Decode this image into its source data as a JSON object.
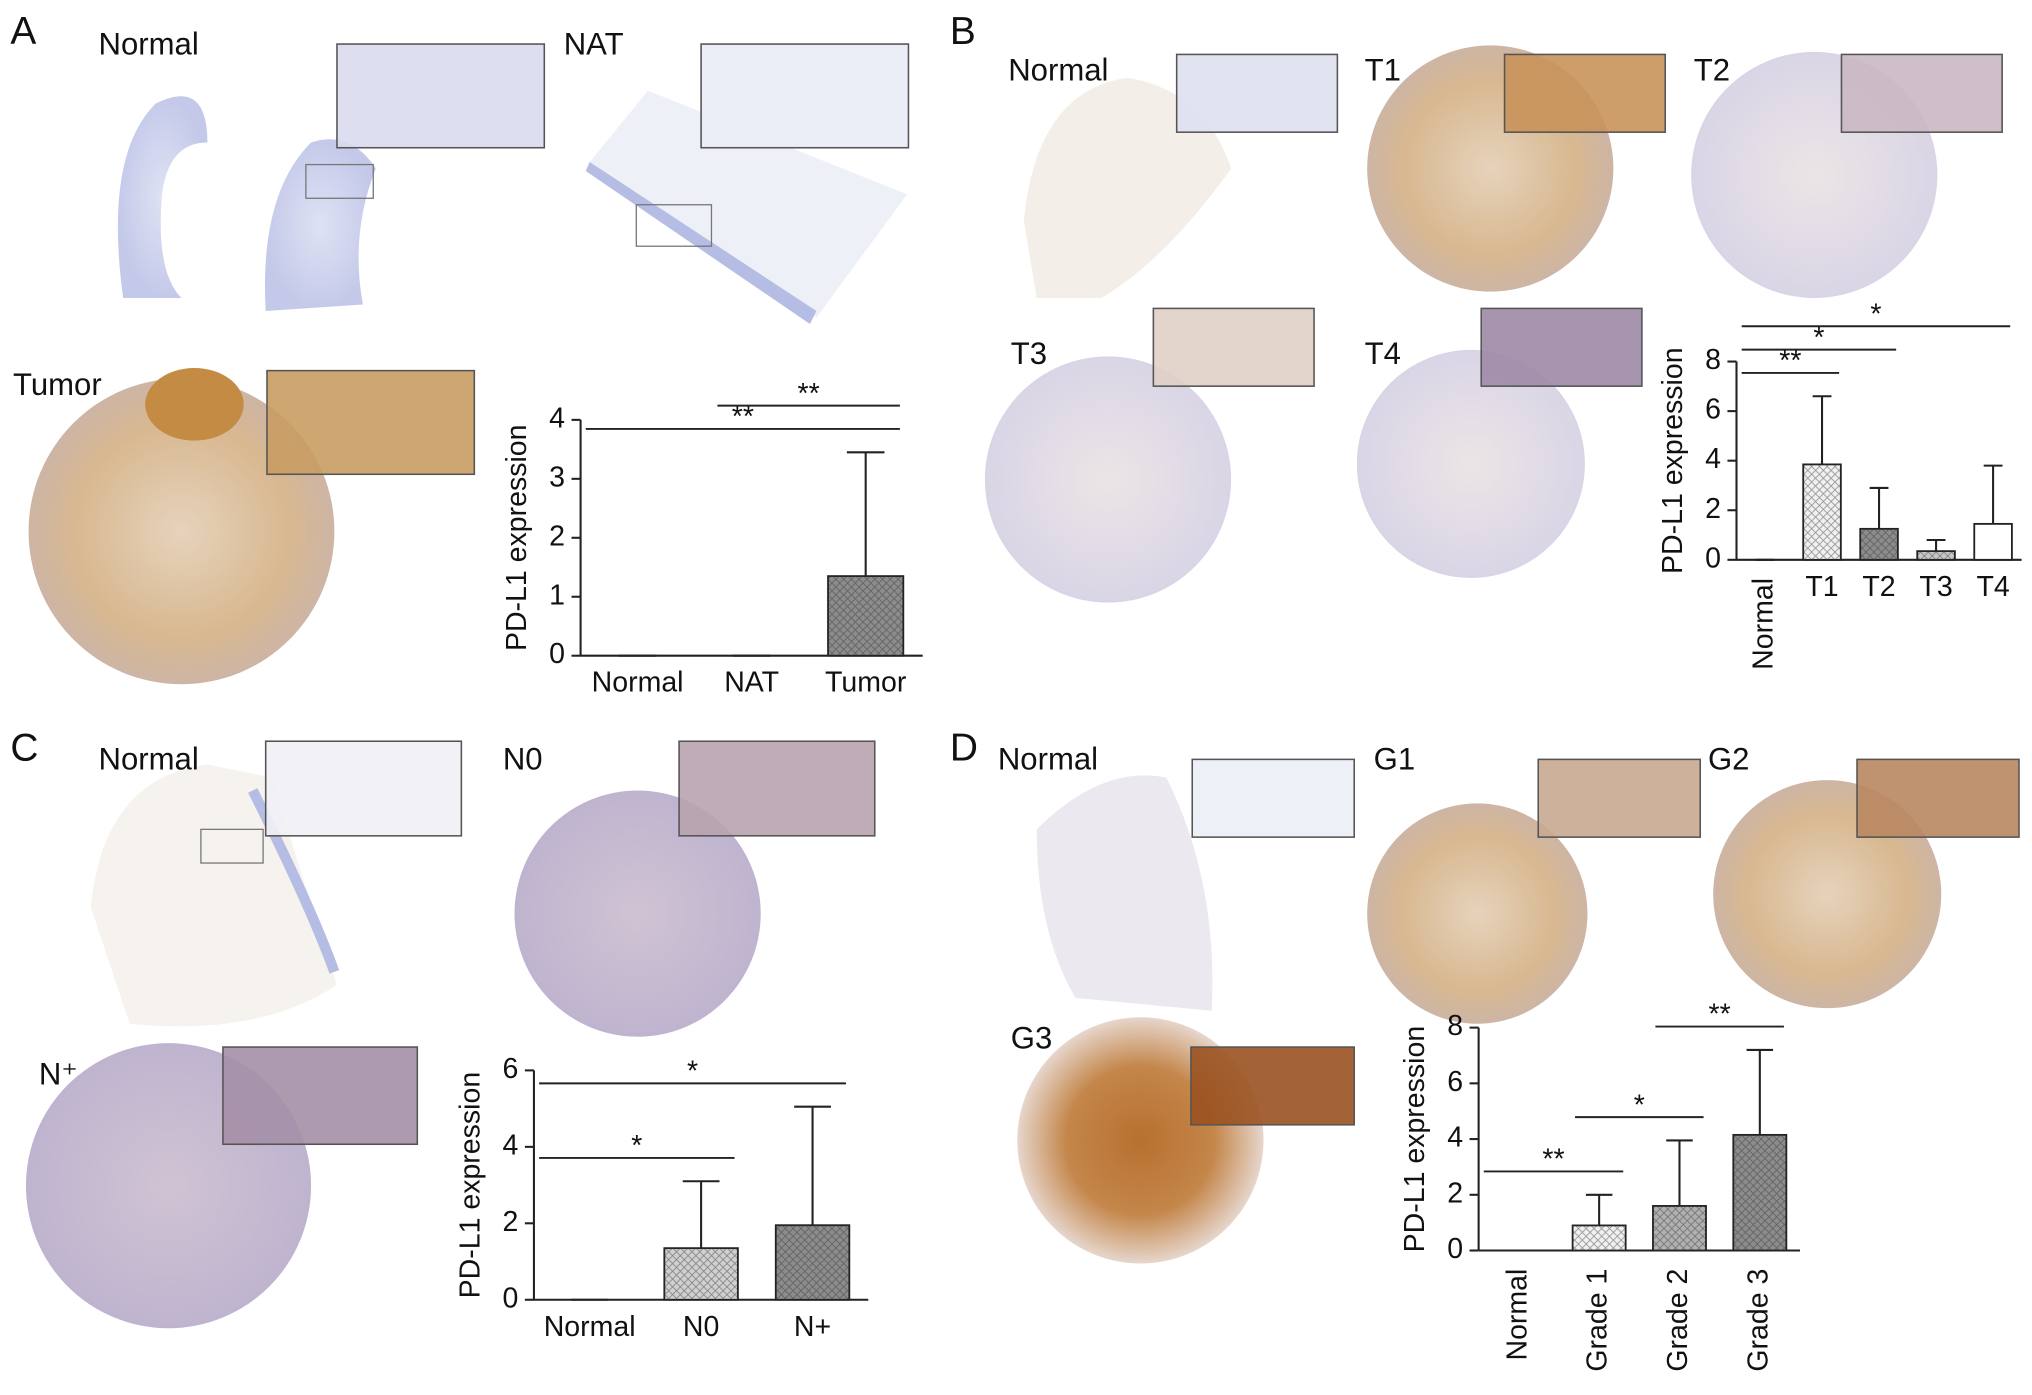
{
  "panels": [
    {
      "letter": "A",
      "image_labels": [
        "Normal",
        "NAT",
        "Tumor"
      ]
    },
    {
      "letter": "B",
      "image_labels": [
        "Normal",
        "T1",
        "T2",
        "T3",
        "T4"
      ]
    },
    {
      "letter": "C",
      "image_labels": [
        "Normal",
        "N0",
        "N⁺"
      ]
    },
    {
      "letter": "D",
      "image_labels": [
        "Normal",
        "G1",
        "G2",
        "G3"
      ]
    }
  ],
  "chart_data": [
    {
      "type": "bar",
      "y_label": "PD-L1 expression",
      "categories": [
        "Normal",
        "NAT",
        "Tumor"
      ],
      "values": [
        0,
        0,
        1.35
      ],
      "errors": [
        0,
        0,
        2.1
      ],
      "colors": [
        "#ffffff",
        "#ffffff",
        "#8c8c8c"
      ],
      "ylim": [
        0,
        4
      ],
      "yticks": [
        0,
        1,
        2,
        3,
        4
      ],
      "significance": [
        {
          "between": [
            "Normal",
            "Tumor"
          ],
          "label": "**"
        },
        {
          "between": [
            "NAT",
            "Tumor"
          ],
          "label": "**"
        }
      ]
    },
    {
      "type": "bar",
      "y_label": "PD-L1 expression",
      "categories": [
        "Normal",
        "T1",
        "T2",
        "T3",
        "T4"
      ],
      "values": [
        0,
        3.85,
        1.25,
        0.35,
        1.45
      ],
      "errors": [
        0,
        2.75,
        1.65,
        0.45,
        2.35
      ],
      "colors": [
        "#ffffff",
        "#f0f0f0",
        "#8c8c8c",
        "#c8c8c8",
        "#ffffff"
      ],
      "ylim": [
        0,
        8
      ],
      "yticks": [
        0,
        2,
        4,
        6,
        8
      ],
      "significance": [
        {
          "between": [
            "Normal",
            "T1"
          ],
          "label": "**"
        },
        {
          "between": [
            "Normal",
            "T2"
          ],
          "label": "*"
        },
        {
          "between": [
            "Normal",
            "T4"
          ],
          "label": "*"
        }
      ]
    },
    {
      "type": "bar",
      "y_label": "PD-L1 expression",
      "categories": [
        "Normal",
        "N0",
        "N+"
      ],
      "values": [
        0,
        1.35,
        1.95
      ],
      "errors": [
        0,
        1.75,
        3.1
      ],
      "colors": [
        "#ffffff",
        "#d0d0d0",
        "#8c8c8c"
      ],
      "ylim": [
        0,
        6
      ],
      "yticks": [
        0,
        2,
        4,
        6
      ],
      "significance": [
        {
          "between": [
            "Normal",
            "N0"
          ],
          "label": "*"
        },
        {
          "between": [
            "Normal",
            "N+"
          ],
          "label": "*"
        }
      ]
    },
    {
      "type": "bar",
      "y_label": "PD-L1 expression",
      "categories": [
        "Normal",
        "Grade 1",
        "Grade 2",
        "Grade 3"
      ],
      "values": [
        0,
        0.9,
        1.6,
        4.15
      ],
      "errors": [
        0,
        1.1,
        2.35,
        3.05
      ],
      "colors": [
        "#ffffff",
        "#f0f0f0",
        "#b0b0b0",
        "#8c8c8c"
      ],
      "ylim": [
        0,
        8
      ],
      "yticks": [
        0,
        2,
        4,
        6,
        8
      ],
      "significance": [
        {
          "between": [
            "Normal",
            "Grade 1"
          ],
          "label": "**"
        },
        {
          "between": [
            "Grade 1",
            "Grade 2"
          ],
          "label": "*"
        },
        {
          "between": [
            "Grade 2",
            "Grade 3"
          ],
          "label": "**"
        }
      ]
    }
  ]
}
